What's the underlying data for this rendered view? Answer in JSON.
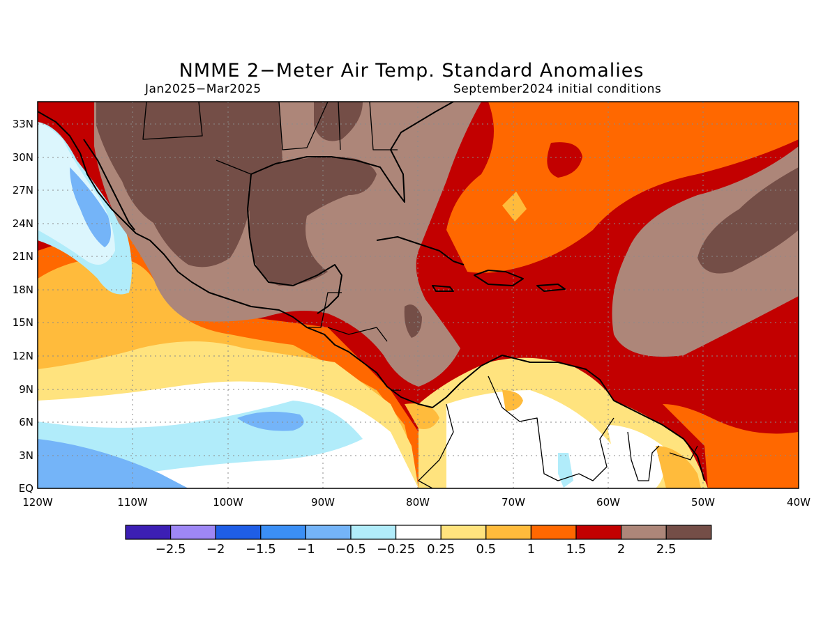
{
  "map": {
    "title": "NMME 2−Meter Air Temp. Standard Anomalies",
    "period": "Jan2025−Mar2025",
    "init": "September2024 initial conditions",
    "lat_ticks": [
      "33N",
      "30N",
      "27N",
      "24N",
      "21N",
      "18N",
      "15N",
      "12N",
      "9N",
      "6N",
      "3N",
      "EQ"
    ],
    "lon_ticks": [
      "120W",
      "110W",
      "100W",
      "90W",
      "80W",
      "70W",
      "60W",
      "50W",
      "40W"
    ],
    "extent": {
      "lon_min": -120,
      "lon_max": -40,
      "lat_min": 0,
      "lat_max": 35
    },
    "colorbar": {
      "colors": [
        "#3c1fb4",
        "#9e87f5",
        "#1f5ee6",
        "#3b8ff5",
        "#74b4f8",
        "#b1ecfa",
        "#ffffff",
        "#ffe37e",
        "#ffbb3c",
        "#ff6800",
        "#c20000",
        "#ad8679",
        "#744e47"
      ],
      "labels": [
        "−2.5",
        "−2",
        "−1.5",
        "−1",
        "−0.5",
        "−0.25",
        "0.25",
        "0.5",
        "1",
        "1.5",
        "2",
        "2.5"
      ]
    }
  }
}
